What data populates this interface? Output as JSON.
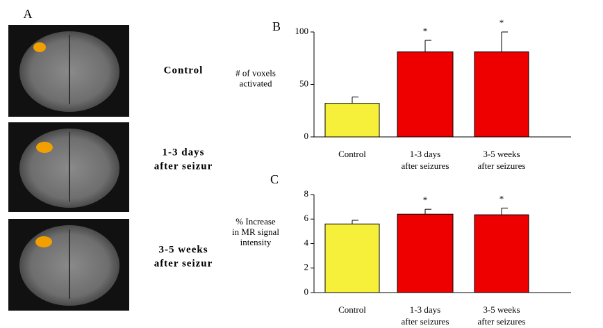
{
  "panel_a": {
    "label": "A",
    "images": [
      {
        "lines": [
          "Control"
        ]
      },
      {
        "lines": [
          "1-3 days",
          "after seizur"
        ]
      },
      {
        "lines": [
          "3-5 weeks",
          "after seizur"
        ]
      }
    ]
  },
  "chart_data": [
    {
      "type": "bar",
      "label": "B",
      "ylabel": [
        "# of voxels",
        "activated"
      ],
      "categories": [
        [
          "Control"
        ],
        [
          "1-3 days",
          "after seizures"
        ],
        [
          "3-5 weeks",
          "after seizures"
        ]
      ],
      "values": [
        32,
        81,
        81
      ],
      "errors": [
        6,
        11,
        19
      ],
      "significance": [
        null,
        "*",
        "*"
      ],
      "colors": [
        "#f7f03a",
        "#ee0000",
        "#ee0000"
      ],
      "ylim": [
        0,
        100
      ],
      "yticks": [
        0,
        50,
        100
      ]
    },
    {
      "type": "bar",
      "label": "C",
      "ylabel": [
        "% Increase",
        "in MR signal",
        "intensity"
      ],
      "categories": [
        [
          "Control"
        ],
        [
          "1-3 days",
          "after seizures"
        ],
        [
          "3-5 weeks",
          "after seizures"
        ]
      ],
      "values": [
        5.6,
        6.4,
        6.35
      ],
      "errors": [
        0.3,
        0.4,
        0.55
      ],
      "significance": [
        null,
        "*",
        "*"
      ],
      "colors": [
        "#f7f03a",
        "#ee0000",
        "#ee0000"
      ],
      "ylim": [
        0,
        8
      ],
      "yticks": [
        0,
        2,
        4,
        6,
        8
      ]
    }
  ]
}
